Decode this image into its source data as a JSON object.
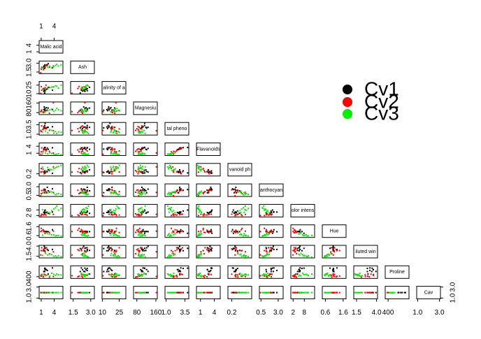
{
  "chart_data": {
    "type": "scatter-matrix",
    "variables": [
      {
        "name": "Malic acid",
        "lim": [
          0.74,
          5.8
        ],
        "ticks": [
          1,
          4
        ]
      },
      {
        "name": "Ash",
        "lim": [
          1.36,
          3.23
        ],
        "ticks": [
          1.5,
          {
            "value": 3,
            "label": "3.0"
          }
        ]
      },
      {
        "name": "alinity of a",
        "lim": [
          10.6,
          30
        ],
        "ticks": [
          10,
          25
        ]
      },
      {
        "name": "Magnesiu",
        "lim": [
          70,
          162
        ],
        "ticks": [
          80,
          160
        ]
      },
      {
        "name": "tal pheno",
        "lim": [
          0.98,
          3.88
        ],
        "ticks": [
          {
            "value": 1,
            "label": "1.0"
          },
          3.5
        ]
      },
      {
        "name": "Flavanoids",
        "lim": [
          0.34,
          5.08
        ],
        "ticks": [
          1,
          4
        ]
      },
      {
        "name": "vanoid ph",
        "lim": [
          0.13,
          0.66
        ],
        "ticks": [
          0.2
        ]
      },
      {
        "name": "anthocyan",
        "lim": [
          0.41,
          3.58
        ],
        "ticks": [
          0.5,
          {
            "value": 3,
            "label": "3.0"
          }
        ]
      },
      {
        "name": "olor intens",
        "lim": [
          1.28,
          13
        ],
        "ticks": [
          2,
          8
        ]
      },
      {
        "name": "Hue",
        "lim": [
          0.48,
          1.71
        ],
        "ticks": [
          0.6,
          1.6
        ]
      },
      {
        "name": "iluted win",
        "lim": [
          1.27,
          4
        ],
        "ticks": [
          1.5,
          {
            "value": 4,
            "label": "4.0"
          }
        ]
      },
      {
        "name": "Proline",
        "lim": [
          278,
          1680
        ],
        "ticks": [
          400
        ]
      },
      {
        "name": "Cav",
        "lim": [
          1,
          3
        ],
        "ticks": [
          {
            "value": 1,
            "label": "1.0"
          },
          {
            "value": 3,
            "label": "3.0"
          }
        ]
      }
    ],
    "series": [
      {
        "name": "Cv1",
        "color": "#000000",
        "points": [
          [
            1.7,
            2.4,
            15.6,
            127,
            2.8,
            3.06,
            0.28,
            2.29,
            5.64,
            1.04,
            3.92,
            1065,
            2
          ],
          [
            1.8,
            2.1,
            11.2,
            100,
            2.65,
            2.76,
            0.26,
            1.28,
            4.38,
            1.05,
            3.4,
            1050,
            2
          ],
          [
            2.4,
            2.7,
            18.6,
            101,
            2.8,
            3.24,
            0.3,
            2.81,
            5.68,
            1.03,
            3.17,
            1185,
            2
          ],
          [
            1.9,
            2.5,
            16.8,
            113,
            3.85,
            3.49,
            0.24,
            2.18,
            7.8,
            0.86,
            3.45,
            1480,
            2
          ],
          [
            2.6,
            2.9,
            21,
            118,
            2.8,
            2.69,
            0.39,
            1.82,
            4.32,
            1.04,
            2.93,
            735,
            2
          ],
          [
            1.8,
            2.7,
            15.2,
            112,
            3.27,
            3.39,
            0.34,
            1.97,
            6.75,
            1.05,
            2.85,
            1450,
            2
          ],
          [
            1.9,
            2.3,
            14.6,
            96,
            2.5,
            2.52,
            0.3,
            1.98,
            5.25,
            1.02,
            3.58,
            1290,
            2
          ],
          [
            2.2,
            2.6,
            17.6,
            121,
            2.6,
            2.51,
            0.31,
            1.25,
            5.05,
            1.06,
            3.58,
            1295,
            2
          ],
          [
            1.6,
            2.5,
            14,
            105,
            2.9,
            2.98,
            0.29,
            1.98,
            5.2,
            1.08,
            2.85,
            1045,
            2
          ],
          [
            3.6,
            2.2,
            16,
            106,
            2.95,
            3.32,
            0.22,
            2.38,
            5.75,
            1.25,
            3.17,
            1510,
            2
          ]
        ]
      },
      {
        "name": "Cv2",
        "color": "#ff0000",
        "points": [
          [
            0.9,
            1.4,
            10.6,
            88,
            1.98,
            0.57,
            0.28,
            0.42,
            1.95,
            1.05,
            1.82,
            520,
            2
          ],
          [
            1.1,
            2.3,
            16,
            101,
            3.18,
            3.32,
            0.3,
            1.9,
            3.38,
            1.12,
            3.59,
            680,
            2
          ],
          [
            1.4,
            2.2,
            18,
            86,
            2.2,
            1.59,
            0.43,
            1.28,
            2.8,
            1.25,
            2.87,
            450,
            2
          ],
          [
            1.9,
            2.6,
            20.5,
            90,
            2.8,
            2.8,
            0.34,
            1.73,
            2.9,
            0.91,
            2.57,
            630,
            2
          ],
          [
            3.8,
            2.5,
            22,
            162,
            1.9,
            1.1,
            0.53,
            1.35,
            3.2,
            1.1,
            2.6,
            420,
            2
          ],
          [
            1.5,
            1.9,
            19,
            80,
            2.45,
            2.4,
            0.3,
            2.0,
            2.6,
            1.2,
            3.1,
            385,
            2
          ],
          [
            2.1,
            2.7,
            25,
            98,
            2.4,
            2.0,
            0.29,
            1.6,
            2.5,
            0.94,
            3.6,
            565,
            2
          ],
          [
            1.7,
            2.2,
            18.5,
            85,
            3.0,
            2.9,
            0.2,
            2.1,
            3.4,
            1.05,
            3.3,
            720,
            2
          ],
          [
            1.0,
            2.0,
            22.5,
            92,
            1.7,
            1.6,
            0.45,
            1.0,
            2.0,
            1.4,
            2.9,
            470,
            2
          ],
          [
            2.9,
            2.3,
            21,
            75,
            2.0,
            1.8,
            0.35,
            1.4,
            3.8,
            0.96,
            2.1,
            345,
            2
          ]
        ]
      },
      {
        "name": "Cv3",
        "color": "#00ee00",
        "points": [
          [
            5.0,
            2.5,
            20,
            104,
            1.6,
            0.8,
            0.55,
            1.0,
            7.7,
            0.6,
            1.6,
            650,
            2
          ],
          [
            3.9,
            2.4,
            22,
            90,
            1.3,
            0.6,
            0.44,
            1.1,
            9.0,
            0.7,
            1.5,
            700,
            2
          ],
          [
            4.3,
            2.6,
            24,
            100,
            1.7,
            0.5,
            0.48,
            0.7,
            10.2,
            0.57,
            1.6,
            560,
            2
          ],
          [
            2.5,
            2.3,
            19.5,
            96,
            1.4,
            0.7,
            0.5,
            1.3,
            5.5,
            0.82,
            1.8,
            600,
            2
          ],
          [
            3.4,
            2.2,
            21.5,
            110,
            2.0,
            0.9,
            0.4,
            1.5,
            7.1,
            0.7,
            1.9,
            830,
            2
          ],
          [
            5.6,
            2.7,
            25,
            95,
            1.5,
            0.4,
            0.6,
            0.8,
            9.6,
            0.55,
            1.4,
            620,
            2
          ],
          [
            2.0,
            2.4,
            18,
            88,
            1.8,
            1.1,
            0.35,
            1.4,
            6.2,
            0.9,
            2.2,
            520,
            2
          ],
          [
            4.6,
            2.8,
            23,
            115,
            1.2,
            0.6,
            0.53,
            0.9,
            12.0,
            0.62,
            1.3,
            740,
            2
          ],
          [
            3.0,
            2.5,
            20.5,
            102,
            2.2,
            1.2,
            0.42,
            1.7,
            5.0,
            0.78,
            2.0,
            480,
            2
          ],
          [
            1.3,
            2.3,
            17.5,
            86,
            1.6,
            0.7,
            0.52,
            1.2,
            8.2,
            0.65,
            1.7,
            680,
            2
          ]
        ]
      }
    ],
    "legend": "top-right"
  }
}
